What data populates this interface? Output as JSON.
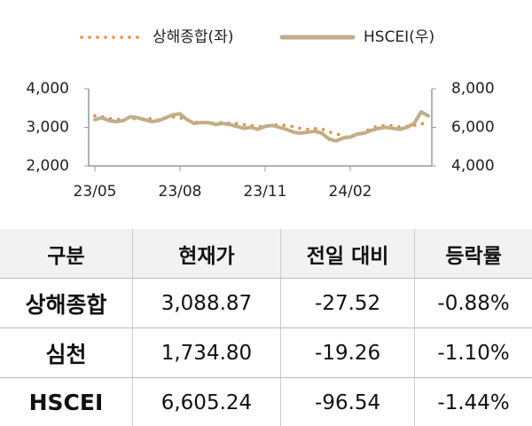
{
  "chart_data": {
    "type": "line",
    "categories": [
      "23/05",
      null,
      null,
      null,
      null,
      null,
      null,
      null,
      null,
      null,
      null,
      null,
      "23/08",
      null,
      null,
      null,
      null,
      null,
      null,
      null,
      null,
      null,
      null,
      null,
      "23/11",
      null,
      null,
      null,
      null,
      null,
      null,
      null,
      null,
      null,
      null,
      null,
      "24/02",
      null,
      null,
      null,
      null,
      null,
      null,
      null,
      null,
      null,
      null,
      null
    ],
    "series": [
      {
        "name": "상해종합(좌)",
        "color": "#f08a2c",
        "axis": "y",
        "values": [
          3300,
          3280,
          3230,
          3210,
          3200,
          3240,
          3210,
          3200,
          3230,
          3190,
          3240,
          3270,
          3250,
          3190,
          3140,
          3130,
          3120,
          3110,
          3130,
          3110,
          3100,
          3070,
          3050,
          3020,
          3030,
          3060,
          3070,
          3050,
          3020,
          2970,
          2950,
          2970,
          2960,
          2880,
          2840,
          2770,
          2730,
          2830,
          2870,
          2990,
          3030,
          3050,
          3040,
          3010,
          3030,
          3050,
          3100,
          3090
        ]
      },
      {
        "name": "HSCEI(우)",
        "color": "#bfae8a",
        "axis": "y2",
        "values": [
          6400,
          6500,
          6350,
          6300,
          6350,
          6550,
          6500,
          6400,
          6300,
          6350,
          6500,
          6650,
          6700,
          6400,
          6200,
          6250,
          6250,
          6150,
          6200,
          6150,
          6050,
          5950,
          6000,
          5900,
          6050,
          6100,
          6000,
          5900,
          5750,
          5700,
          5750,
          5800,
          5700,
          5400,
          5300,
          5450,
          5500,
          5650,
          5700,
          5850,
          5950,
          6000,
          5950,
          5900,
          6000,
          6200,
          6800,
          6600
        ]
      }
    ],
    "ylim": [
      2000,
      4000
    ],
    "yticks": [
      {
        "value": 2000,
        "label": "2,000"
      },
      {
        "value": 3000,
        "label": "3,000"
      },
      {
        "value": 4000,
        "label": "4,000"
      }
    ],
    "y2lim": [
      4000,
      8000
    ],
    "y2ticks": [
      {
        "value": 4000,
        "label": "4,000"
      },
      {
        "value": 6000,
        "label": "6,000"
      },
      {
        "value": 8000,
        "label": "8,000"
      }
    ],
    "legend": "top"
  },
  "table": {
    "headers": [
      "구분",
      "현재가",
      "전일 대비",
      "등락률"
    ],
    "rows": [
      [
        "상해종합",
        "3,088.87",
        "-27.52",
        "-0.88%"
      ],
      [
        "심천",
        "1,734.80",
        "-19.26",
        "-1.10%"
      ],
      [
        "HSCEI",
        "6,605.24",
        "-96.54",
        "-1.44%"
      ]
    ]
  }
}
